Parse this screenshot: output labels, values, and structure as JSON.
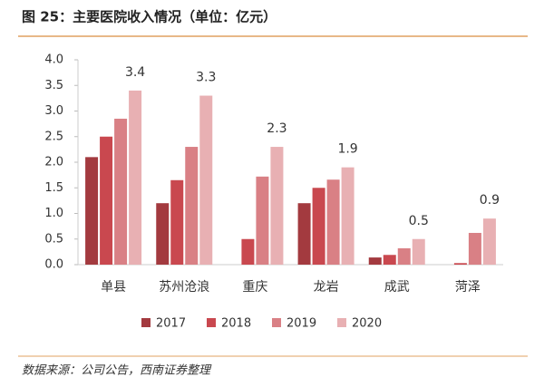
{
  "chart_data": {
    "type": "bar",
    "title": "图 25：主要医院收入情况（单位：亿元）",
    "source": "数据来源：公司公告，西南证券整理",
    "categories": [
      "单县",
      "苏州沧浪",
      "重庆",
      "龙岩",
      "成武",
      "菏泽"
    ],
    "series": [
      {
        "name": "2017",
        "color": "#a33a3f",
        "values": [
          2.1,
          1.2,
          null,
          1.2,
          0.14,
          null
        ]
      },
      {
        "name": "2018",
        "color": "#c9484f",
        "values": [
          2.5,
          1.65,
          0.5,
          1.5,
          0.19,
          0.03
        ]
      },
      {
        "name": "2019",
        "color": "#d98085",
        "values": [
          2.85,
          2.3,
          1.72,
          1.66,
          0.32,
          0.62
        ]
      },
      {
        "name": "2020",
        "color": "#e8b0b3",
        "values": [
          3.4,
          3.3,
          2.3,
          1.9,
          0.5,
          0.9
        ]
      }
    ],
    "ylim": [
      0,
      4
    ],
    "yticks": [
      {
        "value": 0,
        "label": "0.0"
      },
      {
        "value": 0.5,
        "label": "0.5"
      },
      {
        "value": 1,
        "label": "1.0"
      },
      {
        "value": 1.5,
        "label": "1.5"
      },
      {
        "value": 2,
        "label": "2.0"
      },
      {
        "value": 2.5,
        "label": "2.5"
      },
      {
        "value": 3,
        "label": "3.0"
      },
      {
        "value": 3.5,
        "label": "3.5"
      },
      {
        "value": 4,
        "label": "4.0"
      }
    ],
    "legend": "bottom"
  }
}
